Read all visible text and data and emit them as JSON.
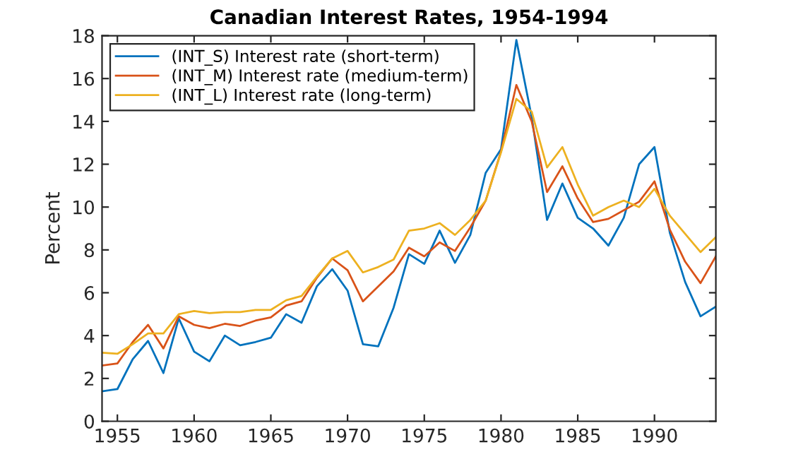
{
  "chart_data": {
    "type": "line",
    "title": "Canadian Interest Rates, 1954-1994",
    "ylabel": "Percent",
    "x": [
      1954,
      1955,
      1956,
      1957,
      1958,
      1959,
      1960,
      1961,
      1962,
      1963,
      1964,
      1965,
      1966,
      1967,
      1968,
      1969,
      1970,
      1971,
      1972,
      1973,
      1974,
      1975,
      1976,
      1977,
      1978,
      1979,
      1980,
      1981,
      1982,
      1983,
      1984,
      1985,
      1986,
      1987,
      1988,
      1989,
      1990,
      1991,
      1992,
      1993,
      1994
    ],
    "series": [
      {
        "name": "(INT_S) Interest rate (short-term)",
        "color": "#0072bd",
        "values": [
          1.4,
          1.5,
          2.9,
          3.75,
          2.25,
          4.8,
          3.25,
          2.8,
          4.0,
          3.55,
          3.7,
          3.9,
          5.0,
          4.6,
          6.3,
          7.1,
          6.1,
          3.6,
          3.5,
          5.3,
          7.8,
          7.35,
          8.9,
          7.4,
          8.7,
          11.6,
          12.7,
          17.8,
          14.2,
          9.4,
          11.1,
          9.5,
          9.0,
          8.2,
          9.5,
          12.0,
          12.8,
          8.8,
          6.5,
          4.9,
          5.35
        ]
      },
      {
        "name": "(INT_M) Interest rate (medium-term)",
        "color": "#d95319",
        "values": [
          2.6,
          2.7,
          3.7,
          4.5,
          3.4,
          4.9,
          4.5,
          4.35,
          4.55,
          4.45,
          4.7,
          4.85,
          5.4,
          5.6,
          6.7,
          7.6,
          7.05,
          5.6,
          6.3,
          7.0,
          8.1,
          7.7,
          8.35,
          7.95,
          9.05,
          10.3,
          12.6,
          15.7,
          14.0,
          10.7,
          11.9,
          10.4,
          9.3,
          9.45,
          9.85,
          10.25,
          11.2,
          8.95,
          7.45,
          6.45,
          7.7
        ]
      },
      {
        "name": "(INT_L) Interest rate (long-term)",
        "color": "#edb120",
        "values": [
          3.2,
          3.15,
          3.6,
          4.1,
          4.1,
          5.0,
          5.15,
          5.05,
          5.1,
          5.1,
          5.2,
          5.2,
          5.65,
          5.85,
          6.75,
          7.6,
          7.95,
          6.95,
          7.2,
          7.55,
          8.9,
          9.0,
          9.25,
          8.7,
          9.4,
          10.3,
          12.55,
          15.05,
          14.45,
          11.85,
          12.8,
          11.05,
          9.6,
          10.0,
          10.3,
          10.0,
          10.85,
          9.6,
          8.75,
          7.9,
          8.6
        ]
      }
    ],
    "xlim": [
      1954,
      1994
    ],
    "xticks": [
      1955,
      1960,
      1965,
      1970,
      1975,
      1980,
      1985,
      1990
    ],
    "ylim": [
      0,
      18
    ],
    "yticks": [
      0,
      2,
      4,
      6,
      8,
      10,
      12,
      14,
      16,
      18
    ],
    "grid": false,
    "legend": "top left",
    "marker": "none",
    "line_style": "solid"
  }
}
